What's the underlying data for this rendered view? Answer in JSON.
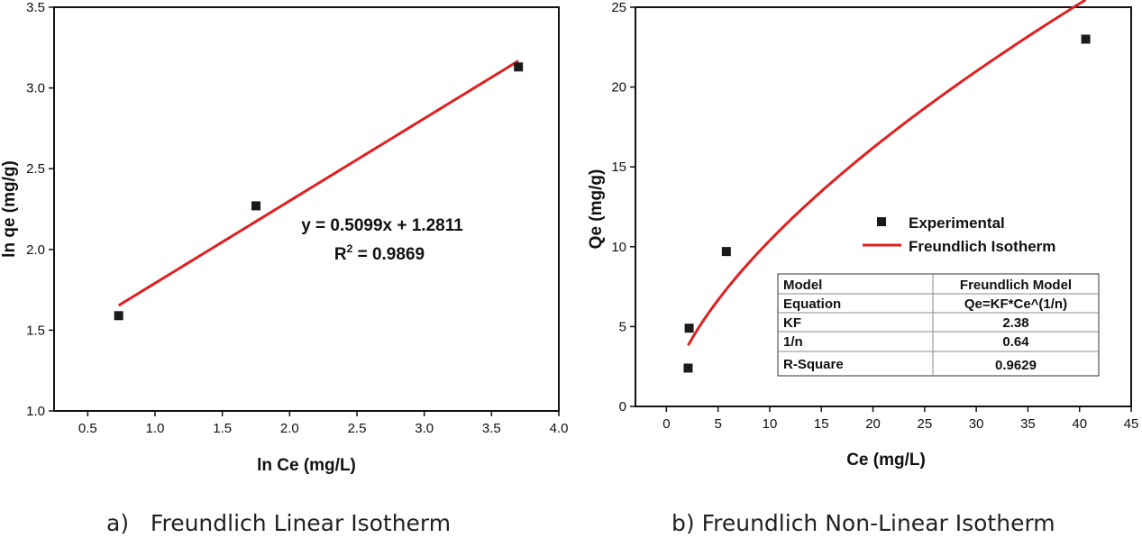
{
  "chart_data": [
    {
      "type": "scatter",
      "xlabel": "ln Ce (mg/L)",
      "ylabel": "ln qe (mg/g)",
      "xlim": [
        0.25,
        4.0
      ],
      "ylim": [
        1.0,
        3.5
      ],
      "xticks": [
        "0.5",
        "1.0",
        "1.5",
        "2.0",
        "2.5",
        "3.0",
        "3.5",
        "4.0"
      ],
      "yticks": [
        "1.0",
        "1.5",
        "2.0",
        "2.5",
        "3.0",
        "3.5"
      ],
      "points": [
        {
          "x": 0.73,
          "y": 1.59
        },
        {
          "x": 1.75,
          "y": 2.27
        },
        {
          "x": 3.7,
          "y": 3.13
        }
      ],
      "fit": {
        "slope": 0.5099,
        "intercept": 1.2811,
        "x_range": [
          0.73,
          3.7
        ]
      },
      "equation_label": "y = 0.5099x + 1.2811",
      "r2_prefix": "R",
      "r2_sup": "2",
      "r2_suffix": " = 0.9869",
      "colors": {
        "points": "#1a1a1a",
        "fit_line": "#e02020"
      }
    },
    {
      "type": "scatter",
      "xlabel": "Ce (mg/L)",
      "ylabel": "Qe (mg/g)",
      "xlim": [
        -3,
        45
      ],
      "ylim": [
        0,
        25
      ],
      "xticks": [
        "0",
        "5",
        "10",
        "15",
        "20",
        "25",
        "30",
        "35",
        "40",
        "45"
      ],
      "yticks": [
        "0",
        "5",
        "10",
        "15",
        "20",
        "25"
      ],
      "points": [
        {
          "x": 2.1,
          "y": 2.4
        },
        {
          "x": 2.2,
          "y": 4.9
        },
        {
          "x": 5.8,
          "y": 9.7
        },
        {
          "x": 40.6,
          "y": 23.0
        }
      ],
      "fit": {
        "model": "Qe=KF*Ce^(1/n)",
        "KF": 2.38,
        "n_inv": 0.64,
        "x_range": [
          2.1,
          40.6
        ]
      },
      "legend": {
        "experimental": "Experimental",
        "fit": "Freundlich Isotherm"
      },
      "table": {
        "header": [
          "Model",
          "Freundlich Model"
        ],
        "rows": [
          [
            "Equation",
            "Qe=KF*Ce^(1/n)"
          ],
          [
            "KF",
            "2.38"
          ],
          [
            "1/n",
            "0.64"
          ],
          [
            "R-Square",
            "0.9629"
          ]
        ]
      },
      "colors": {
        "points": "#1a1a1a",
        "fit_line": "#e02020"
      }
    }
  ],
  "captions": {
    "left": "a)   Freundlich Linear Isotherm",
    "right": "b) Freundlich Non-Linear Isotherm"
  }
}
